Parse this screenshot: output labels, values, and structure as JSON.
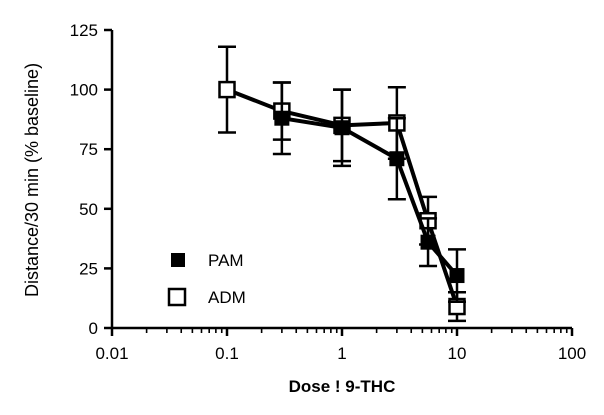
{
  "chart_data": {
    "type": "line",
    "xlabel": "Dose ! 9-THC",
    "ylabel": "Distance/30 min (% baseline)",
    "xscale": "log",
    "xlim": [
      0.01,
      100
    ],
    "ylim": [
      0,
      125
    ],
    "xticks": [
      "0.01",
      "0.1",
      "1",
      "10",
      "100"
    ],
    "yticks": [
      "0",
      "25",
      "50",
      "75",
      "100",
      "125"
    ],
    "legend_position": "lower-left",
    "series": [
      {
        "name": "PAM",
        "marker": "filled-square",
        "color": "#000000",
        "x": [
          0.3,
          1,
          3,
          5.6,
          10
        ],
        "y": [
          88,
          84,
          71,
          36,
          22
        ],
        "err": [
          15,
          16,
          17,
          10,
          11
        ]
      },
      {
        "name": "ADM",
        "marker": "open-square",
        "color": "#000000",
        "x": [
          0.1,
          0.3,
          1,
          3,
          5.6,
          10
        ],
        "y": [
          100,
          91,
          85,
          86,
          45,
          9
        ],
        "err": [
          18,
          12,
          15,
          15,
          10,
          6
        ]
      }
    ]
  }
}
